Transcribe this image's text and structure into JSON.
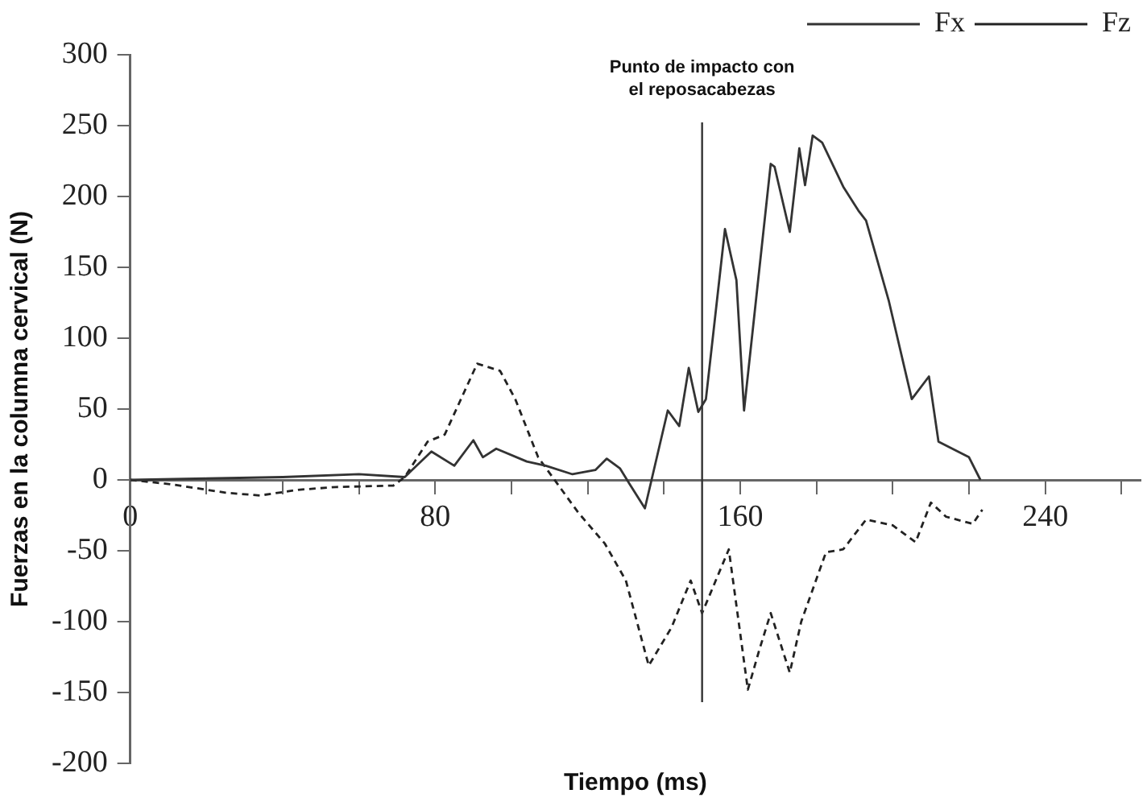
{
  "chart_data": {
    "type": "line",
    "xlabel": "Tiempo (ms)",
    "ylabel": "Fuerzas en la columna cervical (N)",
    "xlim": [
      0,
      265
    ],
    "xticks": [
      0,
      {
        "value": 20,
        "label": null
      },
      {
        "value": 40,
        "label": null
      },
      {
        "value": 60,
        "label": null
      },
      80,
      {
        "value": 100,
        "label": null
      },
      {
        "value": 120,
        "label": null
      },
      {
        "value": 140,
        "label": null
      },
      160,
      {
        "value": 180,
        "label": null
      },
      {
        "value": 200,
        "label": null
      },
      {
        "value": 220,
        "label": null
      },
      240,
      {
        "value": 260,
        "label": null
      }
    ],
    "ylim": [
      -200,
      300
    ],
    "yticks": [
      -200,
      -150,
      -100,
      -50,
      0,
      50,
      100,
      150,
      200,
      250,
      300
    ],
    "grid": false,
    "legend": "top right",
    "marker": "none",
    "ref_lines": [
      {
        "axis": "x",
        "value": 150,
        "label": "Punto de impacto con el reposacabezas",
        "color": "#333333",
        "line_style": "solid"
      }
    ],
    "series": [
      {
        "name": "Fx",
        "color": "#333333",
        "line_style": "solid",
        "x": [
          0,
          20,
          40,
          60,
          72,
          79,
          85,
          90,
          92.5,
          96,
          104,
          109,
          116,
          122,
          125,
          128.5,
          131,
          135,
          141,
          144,
          146.5,
          149,
          151,
          156,
          159,
          161,
          168,
          169,
          173,
          175.5,
          177,
          179,
          181.5,
          187,
          191,
          193,
          199,
          205,
          209.5,
          212,
          220,
          223
        ],
        "values": [
          0,
          1,
          2,
          4,
          2,
          20,
          10,
          28,
          16,
          22,
          13,
          10,
          4,
          7,
          15,
          8,
          -3,
          -20,
          49,
          38,
          79,
          48,
          57,
          177,
          141,
          49,
          223,
          221,
          175,
          234,
          208,
          243,
          238,
          207,
          190,
          183,
          126,
          57,
          73,
          27,
          16,
          0
        ]
      },
      {
        "name": "Fz",
        "color": "#222222",
        "line_style": "dashed",
        "x": [
          0,
          10.5,
          25,
          34,
          44,
          54,
          69,
          72,
          78,
          82.5,
          91,
          97,
          101,
          107,
          117.5,
          124.5,
          130,
          136,
          142,
          147,
          150,
          157,
          162,
          165,
          168,
          173,
          176,
          182.5,
          187,
          193,
          200,
          206,
          210,
          214,
          221,
          223.5
        ],
        "values": [
          0,
          -3,
          -9,
          -11,
          -7,
          -5,
          -4,
          2,
          27,
          32,
          82,
          77,
          57,
          16,
          -23,
          -45,
          -71,
          -131,
          -104,
          -71,
          -94,
          -49,
          -148,
          -120,
          -94,
          -136,
          -100,
          -51,
          -49,
          -28,
          -32,
          -44,
          -16,
          -26,
          -31,
          -21
        ]
      }
    ]
  }
}
